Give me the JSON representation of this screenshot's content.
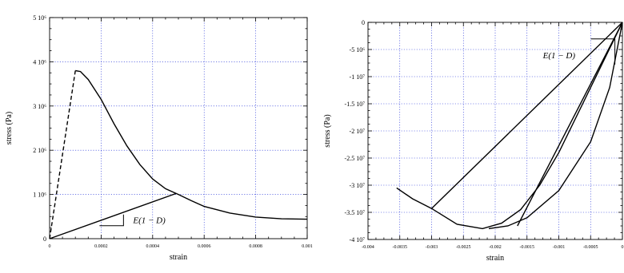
{
  "colors": {
    "grid": "#1f2fd8",
    "curve": "#000000",
    "background": "#ffffff"
  },
  "chart_data": [
    {
      "type": "line",
      "xlabel": "strain",
      "ylabel": "stress (Pa)",
      "xlim": [
        0,
        0.001
      ],
      "ylim": [
        0,
        5000000
      ],
      "grid": true,
      "x_ticks": [
        {
          "v": 0,
          "label": "0"
        },
        {
          "v": 0.0002,
          "label": "0.0002"
        },
        {
          "v": 0.0004,
          "label": "0.0004"
        },
        {
          "v": 0.0006,
          "label": "0.0006"
        },
        {
          "v": 0.0008,
          "label": "0.0008"
        },
        {
          "v": 0.001,
          "label": "0.001"
        }
      ],
      "y_ticks": [
        {
          "v": 0,
          "label": "0"
        },
        {
          "v": 1000000,
          "label": "1 10⁶"
        },
        {
          "v": 2000000,
          "label": "2 10⁶"
        },
        {
          "v": 3000000,
          "label": "3 10⁶"
        },
        {
          "v": 4000000,
          "label": "4 10⁶"
        },
        {
          "v": 5000000,
          "label": "5 10⁶"
        }
      ],
      "series": [
        {
          "style": "dashed",
          "x": [
            0,
            0.0001
          ],
          "y": [
            0,
            3800000
          ]
        },
        {
          "style": "solid",
          "x": [
            0.0001,
            0.00012,
            0.00015,
            0.0002,
            0.00025,
            0.0003,
            0.00035,
            0.0004,
            0.00045,
            0.0005,
            0.00055,
            0.0006,
            0.0007,
            0.0008,
            0.0009,
            0.001
          ],
          "y": [
            3800000,
            3780000,
            3600000,
            3150000,
            2600000,
            2100000,
            1680000,
            1350000,
            1130000,
            1000000,
            860000,
            730000,
            580000,
            490000,
            450000,
            440000
          ]
        },
        {
          "style": "solid",
          "x": [
            0,
            0.00049
          ],
          "y": [
            0,
            1020000
          ]
        }
      ],
      "annotation": {
        "text": "E(1 − D)",
        "x": 0.00038,
        "y": 420000
      }
    },
    {
      "type": "line",
      "xlabel": "strain",
      "ylabel": "stress (Pa)",
      "xlim": [
        -0.004,
        0
      ],
      "ylim": [
        -40000000,
        0
      ],
      "grid": true,
      "x_ticks": [
        {
          "v": -0.004,
          "label": "-0.004"
        },
        {
          "v": -0.0035,
          "label": "-0.0035"
        },
        {
          "v": -0.003,
          "label": "-0.003"
        },
        {
          "v": -0.0025,
          "label": "-0.0025"
        },
        {
          "v": -0.002,
          "label": "-0.002"
        },
        {
          "v": -0.0015,
          "label": "-0.0015"
        },
        {
          "v": -0.001,
          "label": "-0.001"
        },
        {
          "v": -0.0005,
          "label": "-0.0005"
        },
        {
          "v": 0,
          "label": "0"
        }
      ],
      "y_ticks": [
        {
          "v": 0,
          "label": "0"
        },
        {
          "v": -5000000,
          "label": "-5 10⁶"
        },
        {
          "v": -10000000,
          "label": "-1 10⁷"
        },
        {
          "v": -15000000,
          "label": "-1.5 10⁷"
        },
        {
          "v": -20000000,
          "label": "-2 10⁷"
        },
        {
          "v": -25000000,
          "label": "-2.5 10⁷"
        },
        {
          "v": -30000000,
          "label": "-3 10⁷"
        },
        {
          "v": -35000000,
          "label": "-3.5 10⁷"
        },
        {
          "v": -40000000,
          "label": "-4 10⁷"
        }
      ],
      "series": [
        {
          "style": "solid",
          "x": [
            0,
            -0.0005,
            -0.001,
            -0.0013,
            -0.0016,
            -0.0019,
            -0.0022,
            -0.0026,
            -0.003,
            -0.0033,
            -0.00355
          ],
          "y": [
            0,
            -12000000,
            -24000000,
            -30000000,
            -34500000,
            -37000000,
            -38000000,
            -37200000,
            -34300000,
            -32500000,
            -30500000
          ]
        },
        {
          "style": "solid",
          "x": [
            0,
            -0.003
          ],
          "y": [
            0,
            -34300000
          ]
        },
        {
          "style": "solid",
          "x": [
            0,
            -0.00165
          ],
          "y": [
            0,
            -37500000
          ]
        },
        {
          "style": "solid",
          "x": [
            0,
            -0.0002,
            -0.0005,
            -0.001,
            -0.0015,
            -0.0018,
            -0.0021
          ],
          "y": [
            0,
            -12000000,
            -22000000,
            -31000000,
            -36000000,
            -37500000,
            -38000000
          ]
        }
      ],
      "annotation": {
        "text": "E(1 − D)",
        "x": -0.00125,
        "y": -6000000
      }
    }
  ]
}
